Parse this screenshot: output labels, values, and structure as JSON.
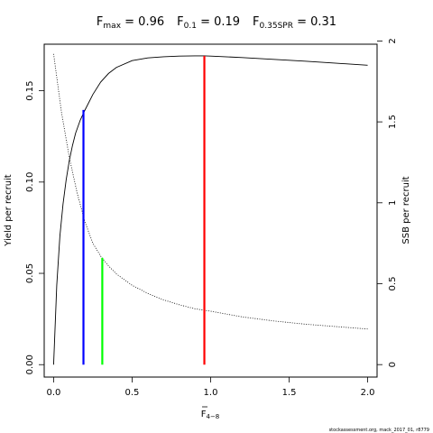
{
  "chart_data": {
    "type": "line",
    "title_parts": {
      "fmax_main": "F",
      "fmax_sub": "max",
      "fmax_value": " = 0.96",
      "f01_main": "F",
      "f01_sub": "0.1",
      "f01_value": " = 0.19",
      "fspr_main": "F",
      "fspr_sub": "0.35SPR",
      "fspr_value": " = 0.31"
    },
    "xlabel_main": "F",
    "xlabel_sub": "4−8",
    "ylabel_left": "Yield per recruit",
    "ylabel_right": "SSB per recruit",
    "xlim": [
      -0.06,
      2.06
    ],
    "ylim_left": [
      -0.0068,
      0.1755
    ],
    "ylim_right": [
      -0.077,
      1.98
    ],
    "x_ticks": [
      0,
      0.5,
      1,
      1.5,
      2
    ],
    "x_tick_labels": [
      "0.0",
      "0.5",
      "1.0",
      "1.5",
      "2.0"
    ],
    "y_left_ticks": [
      0,
      0.05,
      0.1,
      0.15
    ],
    "y_left_tick_labels": [
      "0.00",
      "0.05",
      "0.10",
      "0.15"
    ],
    "y_right_ticks": [
      0,
      0.5,
      1,
      1.5,
      2
    ],
    "y_right_tick_labels": [
      "0",
      "0.5",
      "1",
      "1.5",
      "2"
    ],
    "series": [
      {
        "axis": "left",
        "style": "solid",
        "color": "#000000",
        "x": [
          0,
          0.02,
          0.04,
          0.06,
          0.08,
          0.1,
          0.12,
          0.14,
          0.17,
          0.2,
          0.25,
          0.3,
          0.35,
          0.4,
          0.5,
          0.6,
          0.7,
          0.8,
          0.9,
          0.96,
          1.0,
          1.2,
          1.4,
          1.6,
          1.8,
          2.0
        ],
        "y": [
          0,
          0.0435,
          0.0705,
          0.088,
          0.1013,
          0.1118,
          0.12,
          0.1268,
          0.134,
          0.1395,
          0.148,
          0.1548,
          0.1595,
          0.1628,
          0.1665,
          0.168,
          0.1686,
          0.169,
          0.1691,
          0.1691,
          0.169,
          0.1682,
          0.1672,
          0.1662,
          0.1651,
          0.164
        ]
      },
      {
        "axis": "right",
        "style": "dotted",
        "color": "#000000",
        "x": [
          0,
          0.05,
          0.1,
          0.15,
          0.2,
          0.25,
          0.3,
          0.35,
          0.4,
          0.5,
          0.6,
          0.7,
          0.8,
          0.9,
          1.0,
          1.2,
          1.4,
          1.6,
          1.8,
          2.0
        ],
        "y": [
          1.92,
          1.56,
          1.28,
          1.06,
          0.88,
          0.75,
          0.67,
          0.61,
          0.56,
          0.49,
          0.44,
          0.4,
          0.37,
          0.345,
          0.33,
          0.295,
          0.27,
          0.25,
          0.235,
          0.22
        ]
      }
    ],
    "reference_lines": [
      {
        "x": 0.19,
        "y": 0.1395,
        "color": "#0000ff"
      },
      {
        "x": 0.31,
        "y": 0.0585,
        "color": "#00ff00"
      },
      {
        "x": 0.96,
        "y": 0.1691,
        "color": "#ff0000"
      }
    ],
    "footer": "stockassessment.org, mack_2017_01, r8779"
  }
}
